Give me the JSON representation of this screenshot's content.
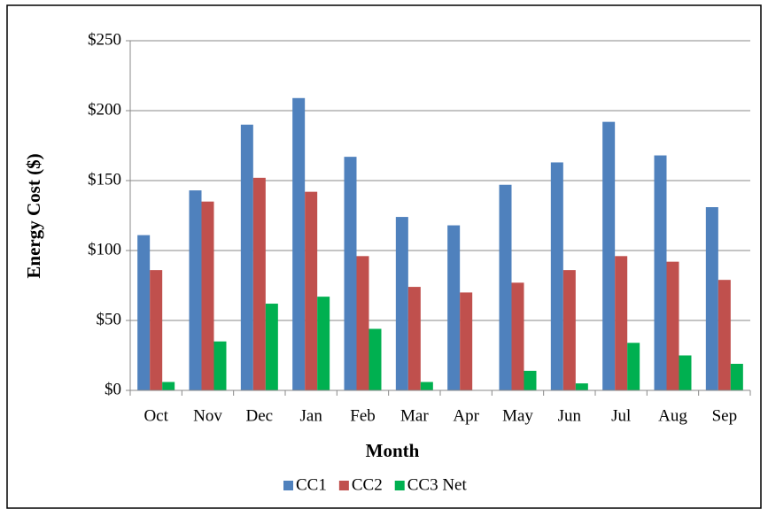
{
  "chart_data": {
    "type": "bar",
    "categories": [
      "Oct",
      "Nov",
      "Dec",
      "Jan",
      "Feb",
      "Mar",
      "Apr",
      "May",
      "Jun",
      "Jul",
      "Aug",
      "Sep"
    ],
    "series": [
      {
        "name": "CC1",
        "color": "#4f81bd",
        "values": [
          111,
          143,
          190,
          209,
          167,
          124,
          118,
          147,
          163,
          192,
          168,
          131
        ]
      },
      {
        "name": "CC2",
        "color": "#c0504d",
        "values": [
          86,
          135,
          152,
          142,
          96,
          74,
          70,
          77,
          86,
          96,
          92,
          79
        ]
      },
      {
        "name": "CC3 Net",
        "color": "#00b050",
        "values": [
          6,
          35,
          62,
          67,
          44,
          6,
          0,
          14,
          5,
          34,
          25,
          19
        ]
      }
    ],
    "x_label": "Month",
    "y_label": "Energy Cost ($)",
    "ylim": [
      0,
      250
    ],
    "yticks": [
      {
        "value": 0,
        "label": "$0"
      },
      {
        "value": 50,
        "label": "$50"
      },
      {
        "value": 100,
        "label": "$100"
      },
      {
        "value": 150,
        "label": "$150"
      },
      {
        "value": 200,
        "label": "$200"
      },
      {
        "value": 250,
        "label": "$250"
      }
    ],
    "grid": true,
    "legend": "bottom"
  }
}
